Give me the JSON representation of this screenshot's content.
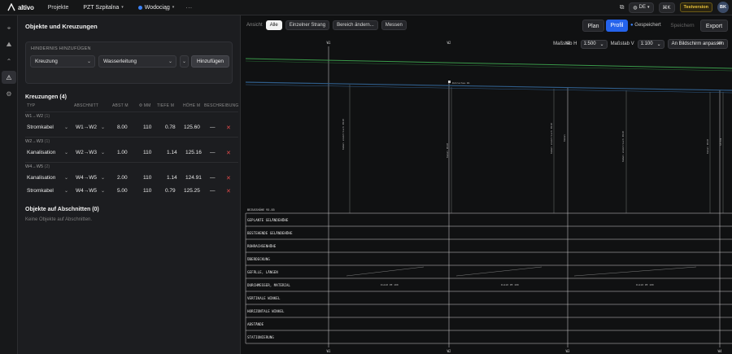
{
  "app": {
    "logo_text": "altivo",
    "nav_projects": "Projekte",
    "project": "PZT Szpitalna",
    "variant": "Wodociąg",
    "more": "···",
    "lang": "DE",
    "shortcut": "⌘K",
    "badge": "Testversion",
    "user_initials": "BK"
  },
  "panel": {
    "title": "Objekte und Kreuzungen",
    "add_card": {
      "label": "HINDERNIS HINZUFÜGEN",
      "type_value": "Kreuzung",
      "kind_value": "Wasserleitung",
      "add_button": "Hinzufügen"
    },
    "crossings_title": "Kreuzungen (4)",
    "columns": [
      "TYP",
      "ABSCHNITT",
      "ABST M",
      "Φ MM",
      "TIEFE M",
      "HÖHE M",
      "BESCHREIBUNG"
    ],
    "groups": [
      {
        "label": "W1→W2",
        "count": "(1)",
        "rows": [
          {
            "typ": "Stromkabel",
            "abschnitt": "W1→W2",
            "abst": "8.00",
            "phi": "110",
            "tiefe": "0.78",
            "hoehe": "125.60",
            "beschreibung": "—"
          }
        ]
      },
      {
        "label": "W2→W3",
        "count": "(1)",
        "rows": [
          {
            "typ": "Kanalisation",
            "abschnitt": "W2→W3",
            "abst": "1.00",
            "phi": "110",
            "tiefe": "1.14",
            "hoehe": "125.16",
            "beschreibung": "—"
          }
        ]
      },
      {
        "label": "W4→W5",
        "count": "(2)",
        "rows": [
          {
            "typ": "Kanalisation",
            "abschnitt": "W4→W5",
            "abst": "2.00",
            "phi": "110",
            "tiefe": "1.14",
            "hoehe": "124.91",
            "beschreibung": "—"
          },
          {
            "typ": "Stromkabel",
            "abschnitt": "W4→W5",
            "abst": "5.00",
            "phi": "110",
            "tiefe": "0.79",
            "hoehe": "125.25",
            "beschreibung": "—"
          }
        ]
      }
    ],
    "objects_title": "Objekte auf Abschnitten (0)",
    "objects_empty": "Keine Objekte auf Abschnitten."
  },
  "viewer": {
    "ansicht_label": "Ansicht",
    "views": [
      "Alle",
      "Einzelner Strang",
      "Bereich ändern...",
      "Messen"
    ],
    "plan": "Plan",
    "profil": "Profil",
    "saved": "Gespeichert",
    "save": "Speichern",
    "export": "Export",
    "scale_h_label": "Maßstab H",
    "scale_h": "1:500",
    "scale_v_label": "Maßstab V",
    "scale_v": "1:100",
    "fit": "An Bildschirm anpassen",
    "reference_label": "BEZUGSHÖHE 95.85",
    "band_rows": [
      "GEPLANTE GELÄNDEHÖHE",
      "BESTEHENDE GELÄNDEHÖHE",
      "ROHRACHSENHÖHE",
      "ÜBERDECKUNG",
      "GEFÄLLE, LÄNGEN",
      "DURCHMESSER, MATERIAL",
      "VERTIKALE WINKEL",
      "HORIZONTALE WINKEL",
      "ABSTÄNDE",
      "STATIONIERUNG"
    ],
    "stations": [
      "W1",
      "W2",
      "W3",
      "W4",
      "W5"
    ],
    "diameter_labels": [
      "Dn110 PE 100",
      "Dn110 PE 100",
      "Dn110 PE 100"
    ],
    "crossing_tags": [
      "Kabel elektrisch Ø110",
      "Kanal Ø110",
      "Kabel elektrisch Ø110",
      "Kanal",
      "Kabel elektrisch Ø110",
      "Kanal Ø110",
      "Strom"
    ],
    "pipe_label": "Rohrachse W1"
  },
  "colors": {
    "accent": "#2563eb",
    "terrain_line": "#3a9a4a",
    "pipe_line": "#2f5d8a",
    "delete": "#e04a4a",
    "badge": "#eac33b"
  }
}
